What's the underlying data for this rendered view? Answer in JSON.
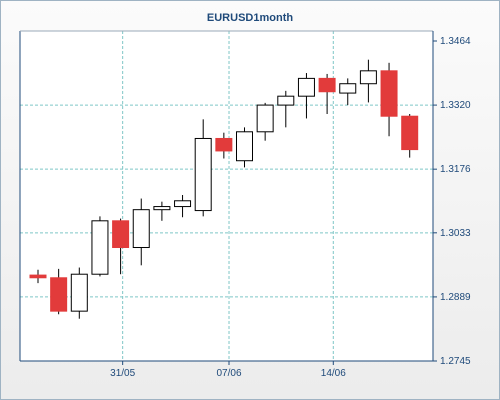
{
  "chart_data": {
    "type": "candlestick",
    "title": "EURUSD1month",
    "y_ticks": [
      "1.3464",
      "1.3320",
      "1.3176",
      "1.3033",
      "1.2889",
      "1.2745"
    ],
    "ylim": [
      1.2745,
      1.3464
    ],
    "x_ticks": [
      "31/05",
      "07/06",
      "14/06"
    ],
    "grid": true,
    "colors": {
      "up_fill": "#ffffff",
      "down_fill": "#e23b3b",
      "wick": "#000000",
      "grid": "#7fc6c6",
      "axis": "#1f4a7a"
    },
    "candles": [
      {
        "o": 1.2938,
        "h": 1.295,
        "l": 1.292,
        "c": 1.2932
      },
      {
        "o": 1.2932,
        "h": 1.2952,
        "l": 1.285,
        "c": 1.2857
      },
      {
        "o": 1.2857,
        "h": 1.2955,
        "l": 1.284,
        "c": 1.294
      },
      {
        "o": 1.294,
        "h": 1.307,
        "l": 1.2935,
        "c": 1.306
      },
      {
        "o": 1.306,
        "h": 1.3065,
        "l": 1.294,
        "c": 1.3
      },
      {
        "o": 1.3,
        "h": 1.311,
        "l": 1.296,
        "c": 1.3085
      },
      {
        "o": 1.3085,
        "h": 1.3103,
        "l": 1.306,
        "c": 1.3092
      },
      {
        "o": 1.3092,
        "h": 1.3118,
        "l": 1.3068,
        "c": 1.3105
      },
      {
        "o": 1.3083,
        "h": 1.3288,
        "l": 1.307,
        "c": 1.3245
      },
      {
        "o": 1.3245,
        "h": 1.3258,
        "l": 1.32,
        "c": 1.3217
      },
      {
        "o": 1.3195,
        "h": 1.327,
        "l": 1.318,
        "c": 1.326
      },
      {
        "o": 1.326,
        "h": 1.3325,
        "l": 1.324,
        "c": 1.332
      },
      {
        "o": 1.332,
        "h": 1.3352,
        "l": 1.327,
        "c": 1.334
      },
      {
        "o": 1.334,
        "h": 1.3392,
        "l": 1.329,
        "c": 1.338
      },
      {
        "o": 1.338,
        "h": 1.339,
        "l": 1.33,
        "c": 1.335
      },
      {
        "o": 1.3347,
        "h": 1.338,
        "l": 1.332,
        "c": 1.3368
      },
      {
        "o": 1.3368,
        "h": 1.3422,
        "l": 1.3326,
        "c": 1.3397
      },
      {
        "o": 1.3397,
        "h": 1.3415,
        "l": 1.325,
        "c": 1.3295
      },
      {
        "o": 1.3295,
        "h": 1.33,
        "l": 1.3202,
        "c": 1.322
      }
    ]
  }
}
